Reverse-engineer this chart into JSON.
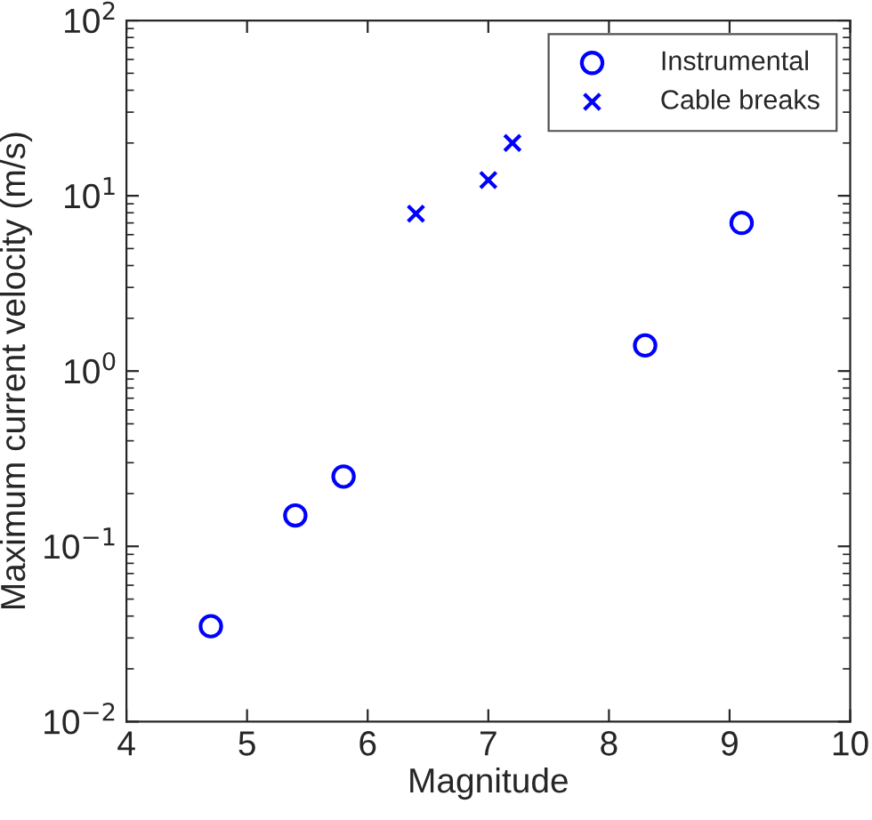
{
  "chart_data": {
    "type": "scatter",
    "xlabel": "Magnitude",
    "ylabel": "Maximum current velocity (m/s)",
    "series": [
      {
        "name": "Instrumental",
        "color": "#0000ff",
        "marker": "circle",
        "x": [
          4.7,
          5.4,
          5.8,
          8.3,
          9.1
        ],
        "values": [
          0.035,
          0.15,
          0.25,
          1.4,
          7
        ]
      },
      {
        "name": "Cable breaks",
        "color": "#0000ff",
        "marker": "cross",
        "x": [
          6.4,
          7.0,
          7.2
        ],
        "values": [
          7.9,
          12.3,
          20
        ]
      }
    ],
    "log": "y",
    "xlim": [
      4,
      10
    ],
    "ylim": [
      0.01,
      100
    ],
    "xticks": [
      4,
      5,
      6,
      7,
      8,
      9,
      10
    ],
    "yticks": [
      {
        "value": 0.01,
        "label": "10$^{−2}$"
      },
      {
        "value": 0.1,
        "label": "10$^{−1}$"
      },
      {
        "value": 1,
        "label": "10$^{0}$"
      },
      {
        "value": 10,
        "label": "10$^{1}$"
      },
      {
        "value": 100,
        "label": "10$^{2}$"
      }
    ],
    "grid": false,
    "legend": "top right"
  }
}
